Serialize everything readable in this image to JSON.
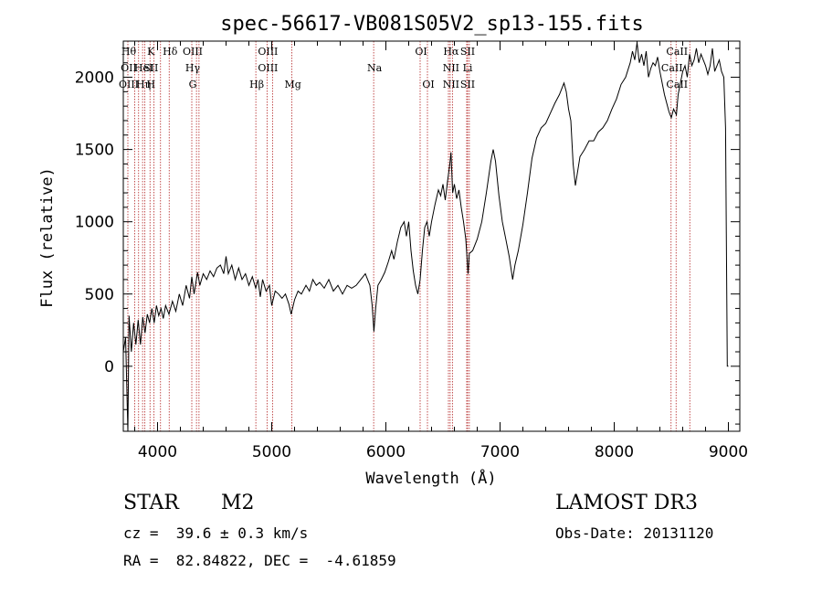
{
  "chart_data": {
    "type": "line",
    "title": "spec-56617-VB081S05V2_sp13-155.fits",
    "xlabel": "Wavelength (Å)",
    "ylabel": "Flux (relative)",
    "xlim": [
      3700,
      9100
    ],
    "ylim": [
      -450,
      2250
    ],
    "x_ticks": [
      4000,
      5000,
      6000,
      7000,
      8000,
      9000
    ],
    "y_ticks": [
      0,
      500,
      1000,
      1500,
      2000
    ],
    "x_tick_labels": [
      "4000",
      "5000",
      "6000",
      "7000",
      "8000",
      "9000"
    ],
    "y_tick_labels": [
      "0",
      "500",
      "1000",
      "1500",
      "2000"
    ],
    "series_color": "#000000",
    "line_color": "#b22222",
    "series": [
      {
        "points": [
          [
            3700,
            100
          ],
          [
            3720,
            200
          ],
          [
            3740,
            -450
          ],
          [
            3750,
            350
          ],
          [
            3770,
            100
          ],
          [
            3790,
            300
          ],
          [
            3810,
            150
          ],
          [
            3830,
            320
          ],
          [
            3850,
            150
          ],
          [
            3870,
            340
          ],
          [
            3890,
            230
          ],
          [
            3910,
            360
          ],
          [
            3930,
            300
          ],
          [
            3950,
            400
          ],
          [
            3970,
            300
          ],
          [
            3990,
            420
          ],
          [
            4010,
            350
          ],
          [
            4030,
            400
          ],
          [
            4050,
            330
          ],
          [
            4070,
            420
          ],
          [
            4100,
            360
          ],
          [
            4130,
            450
          ],
          [
            4160,
            380
          ],
          [
            4190,
            500
          ],
          [
            4220,
            420
          ],
          [
            4250,
            560
          ],
          [
            4280,
            470
          ],
          [
            4300,
            620
          ],
          [
            4320,
            500
          ],
          [
            4350,
            650
          ],
          [
            4370,
            560
          ],
          [
            4400,
            640
          ],
          [
            4430,
            600
          ],
          [
            4460,
            660
          ],
          [
            4490,
            620
          ],
          [
            4520,
            680
          ],
          [
            4550,
            700
          ],
          [
            4580,
            640
          ],
          [
            4600,
            760
          ],
          [
            4620,
            640
          ],
          [
            4650,
            700
          ],
          [
            4680,
            600
          ],
          [
            4710,
            680
          ],
          [
            4740,
            600
          ],
          [
            4770,
            640
          ],
          [
            4800,
            560
          ],
          [
            4830,
            620
          ],
          [
            4860,
            540
          ],
          [
            4880,
            600
          ],
          [
            4900,
            480
          ],
          [
            4920,
            600
          ],
          [
            4950,
            520
          ],
          [
            4980,
            560
          ],
          [
            5000,
            420
          ],
          [
            5030,
            520
          ],
          [
            5060,
            500
          ],
          [
            5090,
            470
          ],
          [
            5120,
            500
          ],
          [
            5150,
            430
          ],
          [
            5170,
            360
          ],
          [
            5200,
            460
          ],
          [
            5230,
            520
          ],
          [
            5260,
            500
          ],
          [
            5300,
            560
          ],
          [
            5330,
            520
          ],
          [
            5360,
            600
          ],
          [
            5390,
            560
          ],
          [
            5420,
            580
          ],
          [
            5460,
            540
          ],
          [
            5500,
            600
          ],
          [
            5540,
            520
          ],
          [
            5580,
            560
          ],
          [
            5620,
            500
          ],
          [
            5660,
            560
          ],
          [
            5700,
            540
          ],
          [
            5740,
            560
          ],
          [
            5780,
            600
          ],
          [
            5820,
            640
          ],
          [
            5860,
            560
          ],
          [
            5880,
            420
          ],
          [
            5895,
            240
          ],
          [
            5910,
            400
          ],
          [
            5930,
            560
          ],
          [
            5960,
            600
          ],
          [
            5990,
            650
          ],
          [
            6020,
            720
          ],
          [
            6050,
            800
          ],
          [
            6070,
            740
          ],
          [
            6100,
            860
          ],
          [
            6130,
            960
          ],
          [
            6160,
            1000
          ],
          [
            6180,
            900
          ],
          [
            6200,
            1000
          ],
          [
            6220,
            800
          ],
          [
            6240,
            660
          ],
          [
            6260,
            560
          ],
          [
            6280,
            500
          ],
          [
            6300,
            600
          ],
          [
            6320,
            800
          ],
          [
            6340,
            960
          ],
          [
            6360,
            1000
          ],
          [
            6380,
            900
          ],
          [
            6400,
            1000
          ],
          [
            6430,
            1120
          ],
          [
            6460,
            1220
          ],
          [
            6480,
            1180
          ],
          [
            6500,
            1260
          ],
          [
            6520,
            1150
          ],
          [
            6540,
            1280
          ],
          [
            6560,
            1400
          ],
          [
            6570,
            1480
          ],
          [
            6585,
            1200
          ],
          [
            6600,
            1260
          ],
          [
            6620,
            1160
          ],
          [
            6640,
            1220
          ],
          [
            6660,
            1100
          ],
          [
            6680,
            1000
          ],
          [
            6700,
            880
          ],
          [
            6720,
            640
          ],
          [
            6730,
            780
          ],
          [
            6760,
            800
          ],
          [
            6800,
            880
          ],
          [
            6840,
            1000
          ],
          [
            6880,
            1200
          ],
          [
            6920,
            1420
          ],
          [
            6940,
            1500
          ],
          [
            6960,
            1420
          ],
          [
            6990,
            1180
          ],
          [
            7020,
            1000
          ],
          [
            7050,
            880
          ],
          [
            7080,
            760
          ],
          [
            7110,
            600
          ],
          [
            7130,
            700
          ],
          [
            7160,
            800
          ],
          [
            7200,
            980
          ],
          [
            7240,
            1200
          ],
          [
            7280,
            1440
          ],
          [
            7320,
            1580
          ],
          [
            7360,
            1650
          ],
          [
            7400,
            1680
          ],
          [
            7440,
            1750
          ],
          [
            7480,
            1820
          ],
          [
            7520,
            1880
          ],
          [
            7560,
            1960
          ],
          [
            7580,
            1900
          ],
          [
            7600,
            1780
          ],
          [
            7620,
            1700
          ],
          [
            7640,
            1400
          ],
          [
            7660,
            1250
          ],
          [
            7680,
            1350
          ],
          [
            7700,
            1450
          ],
          [
            7740,
            1500
          ],
          [
            7780,
            1560
          ],
          [
            7820,
            1560
          ],
          [
            7860,
            1620
          ],
          [
            7900,
            1650
          ],
          [
            7940,
            1700
          ],
          [
            7980,
            1780
          ],
          [
            8020,
            1850
          ],
          [
            8060,
            1950
          ],
          [
            8100,
            2000
          ],
          [
            8140,
            2100
          ],
          [
            8160,
            2180
          ],
          [
            8180,
            2120
          ],
          [
            8200,
            2240
          ],
          [
            8220,
            2100
          ],
          [
            8240,
            2160
          ],
          [
            8260,
            2080
          ],
          [
            8280,
            2180
          ],
          [
            8300,
            2000
          ],
          [
            8320,
            2060
          ],
          [
            8340,
            2100
          ],
          [
            8360,
            2080
          ],
          [
            8380,
            2140
          ],
          [
            8400,
            2040
          ],
          [
            8420,
            1960
          ],
          [
            8440,
            1880
          ],
          [
            8460,
            1820
          ],
          [
            8480,
            1760
          ],
          [
            8500,
            1720
          ],
          [
            8520,
            1780
          ],
          [
            8545,
            1740
          ],
          [
            8560,
            1880
          ],
          [
            8580,
            1960
          ],
          [
            8600,
            2040
          ],
          [
            8620,
            2080
          ],
          [
            8640,
            2000
          ],
          [
            8660,
            2160
          ],
          [
            8680,
            2080
          ],
          [
            8700,
            2120
          ],
          [
            8720,
            2200
          ],
          [
            8740,
            2100
          ],
          [
            8760,
            2160
          ],
          [
            8780,
            2120
          ],
          [
            8800,
            2080
          ],
          [
            8820,
            2020
          ],
          [
            8840,
            2080
          ],
          [
            8860,
            2200
          ],
          [
            8880,
            2040
          ],
          [
            8900,
            2080
          ],
          [
            8920,
            2120
          ],
          [
            8940,
            2040
          ],
          [
            8960,
            2000
          ],
          [
            8975,
            1650
          ],
          [
            8990,
            0
          ],
          [
            9000,
            0
          ]
        ]
      }
    ],
    "lines": [
      {
        "x": 3740,
        "labels": [
          "Hθ",
          "OII",
          "OIII"
        ]
      },
      {
        "x": 3800,
        "labels": []
      },
      {
        "x": 3834,
        "labels": []
      },
      {
        "x": 3869,
        "labels": [
          "",
          "HeI",
          "Hη"
        ]
      },
      {
        "x": 3889,
        "labels": []
      },
      {
        "x": 3934,
        "labels": [
          "K",
          "SII",
          "H"
        ]
      },
      {
        "x": 3969,
        "labels": []
      },
      {
        "x": 4026,
        "labels": []
      },
      {
        "x": 4102,
        "labels": [
          "Hδ"
        ]
      },
      {
        "x": 4300,
        "labels": [
          "OIII",
          "Hγ",
          "G"
        ]
      },
      {
        "x": 4341,
        "labels": []
      },
      {
        "x": 4363,
        "labels": []
      },
      {
        "x": 4861,
        "labels": [
          "",
          "",
          "Hβ"
        ]
      },
      {
        "x": 4959,
        "labels": [
          "OIII",
          "OIII"
        ]
      },
      {
        "x": 5007,
        "labels": []
      },
      {
        "x": 5177,
        "labels": [
          "",
          "",
          "Mg"
        ]
      },
      {
        "x": 5893,
        "labels": [
          "",
          "Na"
        ]
      },
      {
        "x": 6300,
        "labels": [
          "OI"
        ]
      },
      {
        "x": 6364,
        "labels": [
          "",
          "",
          "OI"
        ]
      },
      {
        "x": 6548,
        "labels": []
      },
      {
        "x": 6563,
        "labels": [
          "Hα",
          "NII",
          "NII"
        ]
      },
      {
        "x": 6583,
        "labels": []
      },
      {
        "x": 6708,
        "labels": [
          "SII",
          "Li",
          "SII"
        ]
      },
      {
        "x": 6716,
        "labels": []
      },
      {
        "x": 6731,
        "labels": []
      },
      {
        "x": 8498,
        "labels": [
          "",
          "CaII"
        ]
      },
      {
        "x": 8542,
        "labels": [
          "CaII",
          "",
          "CaII"
        ]
      },
      {
        "x": 8662,
        "labels": []
      }
    ]
  },
  "footer": {
    "object_class": "STAR",
    "subclass": "M2",
    "survey": "LAMOST DR3",
    "redshift": "cz =  39.6 ± 0.3 km/s",
    "obs_date": "Obs-Date: 20131120",
    "coords": "RA =  82.84822, DEC =  -4.61859"
  }
}
